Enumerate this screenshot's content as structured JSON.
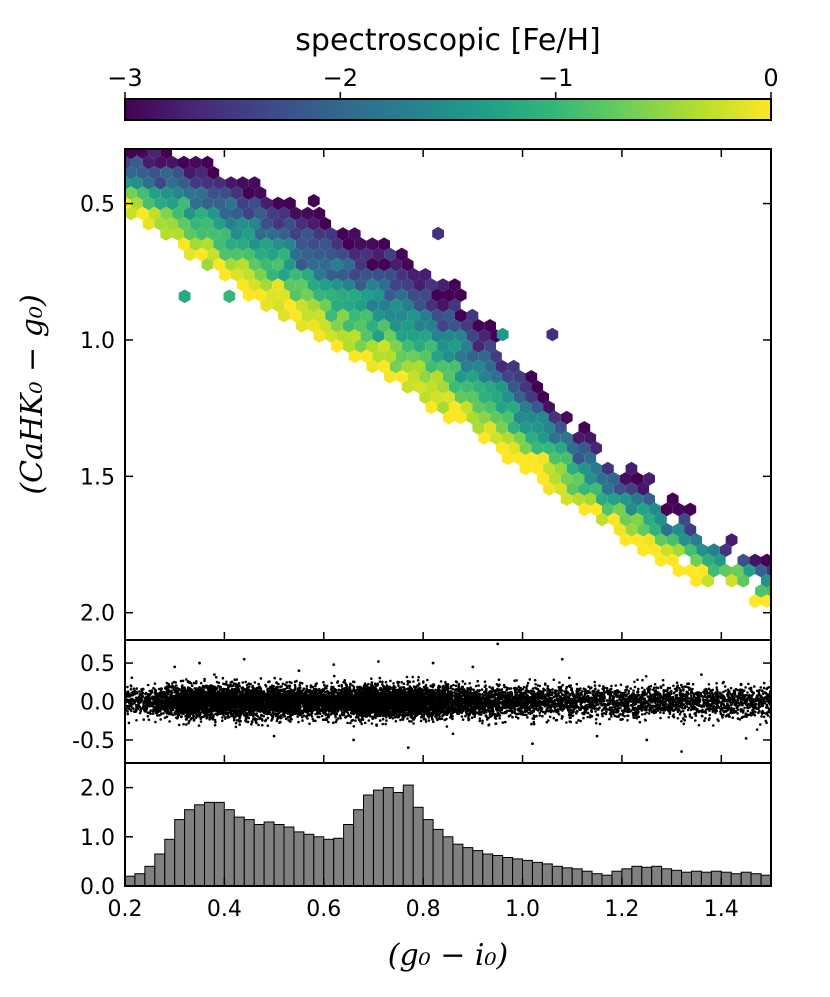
{
  "colorbar": {
    "title": "spectroscopic [Fe/H]",
    "range": [
      -3,
      0
    ],
    "tick_values": [
      -3,
      -2,
      -1,
      0
    ],
    "tick_labels": [
      "−3",
      "−2",
      "−1",
      "0"
    ],
    "colormap": [
      "#440154",
      "#482878",
      "#3e4989",
      "#31688e",
      "#26828e",
      "#1f9e89",
      "#35b779",
      "#6ece58",
      "#b5de2b",
      "#fde725"
    ]
  },
  "chart_data": [
    {
      "type": "hexbin",
      "panel": "top",
      "xlim": [
        0.2,
        1.5
      ],
      "ylim": [
        2.1,
        0.3
      ],
      "y_inverted": true,
      "ylabel": "(CaHK₀ − g₀)",
      "ytick_values": [
        0.5,
        1.0,
        1.5,
        2.0
      ],
      "ytick_labels": [
        "0.5",
        "1.0",
        "1.5",
        "2.0"
      ],
      "color_variable": "spectroscopic [Fe/H]",
      "locus": {
        "x": [
          0.2,
          0.3,
          0.4,
          0.5,
          0.6,
          0.7,
          0.8,
          0.9,
          1.0,
          1.1,
          1.2,
          1.3,
          1.4,
          1.5
        ],
        "y_metal_poor": [
          0.3,
          0.33,
          0.4,
          0.48,
          0.56,
          0.65,
          0.75,
          0.88,
          1.1,
          1.3,
          1.47,
          1.6,
          1.72,
          1.82
        ],
        "y_metal_rich": [
          0.5,
          0.62,
          0.75,
          0.87,
          0.99,
          1.09,
          1.2,
          1.32,
          1.44,
          1.58,
          1.7,
          1.8,
          1.88,
          1.96
        ]
      },
      "outliers": [
        {
          "x": 0.23,
          "y": 0.3,
          "feh": -3.0
        },
        {
          "x": 0.32,
          "y": 0.84,
          "feh": -1.2
        },
        {
          "x": 0.41,
          "y": 0.84,
          "feh": -1.0
        },
        {
          "x": 0.58,
          "y": 0.49,
          "feh": -3.0
        },
        {
          "x": 0.96,
          "y": 0.98,
          "feh": -1.4
        },
        {
          "x": 1.06,
          "y": 0.98,
          "feh": -2.6
        },
        {
          "x": 0.83,
          "y": 0.61,
          "feh": -2.6
        }
      ]
    },
    {
      "type": "scatter",
      "panel": "middle",
      "xlim": [
        0.2,
        1.5
      ],
      "ylim": [
        -0.8,
        0.8
      ],
      "ytick_values": [
        0.5,
        0.0,
        -0.5
      ],
      "ytick_labels": [
        "0.5",
        "0.0",
        "-0.5"
      ],
      "residual_scatter": 0.1,
      "outlier_points": [
        {
          "x": 0.3,
          "y": 0.45
        },
        {
          "x": 0.35,
          "y": 0.5
        },
        {
          "x": 0.38,
          "y": 0.35
        },
        {
          "x": 0.44,
          "y": 0.55
        },
        {
          "x": 0.5,
          "y": -0.45
        },
        {
          "x": 0.55,
          "y": 0.4
        },
        {
          "x": 0.62,
          "y": 0.48
        },
        {
          "x": 0.66,
          "y": -0.5
        },
        {
          "x": 0.71,
          "y": 0.52
        },
        {
          "x": 0.77,
          "y": -0.6
        },
        {
          "x": 0.82,
          "y": 0.5
        },
        {
          "x": 0.86,
          "y": -0.42
        },
        {
          "x": 0.9,
          "y": 0.45
        },
        {
          "x": 0.95,
          "y": 0.75
        },
        {
          "x": 1.02,
          "y": -0.55
        },
        {
          "x": 1.08,
          "y": 0.55
        },
        {
          "x": 1.15,
          "y": -0.45
        },
        {
          "x": 1.25,
          "y": -0.5
        },
        {
          "x": 1.32,
          "y": -0.65
        },
        {
          "x": 1.36,
          "y": 0.35
        },
        {
          "x": 1.45,
          "y": -0.48
        }
      ]
    },
    {
      "type": "bar",
      "panel": "bottom",
      "xlabel": "(g₀ − i₀)",
      "xlim": [
        0.2,
        1.5
      ],
      "ylim": [
        0,
        2.5
      ],
      "ytick_values": [
        0.0,
        1.0,
        2.0
      ],
      "ytick_labels": [
        "0.0",
        "1.0",
        "2.0"
      ],
      "xtick_values": [
        0.2,
        0.4,
        0.6,
        0.8,
        1.0,
        1.2,
        1.4
      ],
      "xtick_labels": [
        "0.2",
        "0.4",
        "0.6",
        "0.8",
        "1.0",
        "1.2",
        "1.4"
      ],
      "bin_start": 0.2,
      "bin_width": 0.02,
      "values": [
        0.2,
        0.25,
        0.4,
        0.65,
        0.95,
        1.35,
        1.55,
        1.65,
        1.7,
        1.7,
        1.55,
        1.4,
        1.35,
        1.25,
        1.3,
        1.25,
        1.2,
        1.1,
        1.05,
        1.0,
        0.95,
        0.97,
        1.25,
        1.55,
        1.85,
        1.95,
        2.0,
        1.9,
        2.05,
        1.6,
        1.35,
        1.15,
        1.0,
        0.85,
        0.78,
        0.72,
        0.65,
        0.62,
        0.58,
        0.55,
        0.52,
        0.48,
        0.45,
        0.4,
        0.37,
        0.35,
        0.3,
        0.25,
        0.22,
        0.3,
        0.35,
        0.4,
        0.38,
        0.4,
        0.35,
        0.32,
        0.28,
        0.3,
        0.28,
        0.3,
        0.28,
        0.25,
        0.28,
        0.25,
        0.22
      ]
    }
  ]
}
